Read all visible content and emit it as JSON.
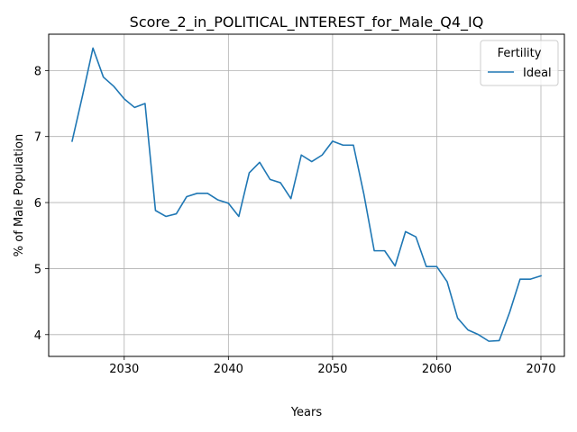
{
  "chart_data": {
    "type": "line",
    "title": "Score_2_in_POLITICAL_INTEREST_for_Male_Q4_IQ",
    "xlabel": "Years",
    "ylabel": "% of Male Population",
    "xlim": [
      2022.75,
      2072.25
    ],
    "ylim": [
      3.67,
      8.55
    ],
    "xticks": [
      2030,
      2040,
      2050,
      2060,
      2070
    ],
    "yticks": [
      4,
      5,
      6,
      7,
      8
    ],
    "grid": true,
    "legend": {
      "title": "Fertility",
      "placement": "top-right"
    },
    "series": [
      {
        "name": "Ideal",
        "color": "#1f77b4",
        "x": [
          2025,
          2026,
          2027,
          2028,
          2029,
          2030,
          2031,
          2032,
          2033,
          2034,
          2035,
          2036,
          2037,
          2038,
          2039,
          2040,
          2041,
          2042,
          2043,
          2044,
          2045,
          2046,
          2047,
          2048,
          2049,
          2050,
          2051,
          2052,
          2053,
          2054,
          2055,
          2056,
          2057,
          2058,
          2059,
          2060,
          2061,
          2062,
          2063,
          2064,
          2065,
          2066,
          2067,
          2068,
          2069,
          2070
        ],
        "values": [
          6.93,
          7.62,
          8.34,
          7.9,
          7.76,
          7.57,
          7.44,
          7.5,
          5.88,
          5.79,
          5.83,
          6.09,
          6.14,
          6.14,
          6.04,
          5.99,
          5.79,
          6.45,
          6.61,
          6.35,
          6.3,
          6.06,
          6.72,
          6.62,
          6.72,
          6.93,
          6.87,
          6.87,
          6.13,
          5.27,
          5.27,
          5.04,
          5.56,
          5.48,
          5.03,
          5.03,
          4.8,
          4.25,
          4.07,
          4.0,
          3.9,
          3.91,
          4.34,
          4.84,
          4.84,
          4.89
        ]
      }
    ]
  }
}
